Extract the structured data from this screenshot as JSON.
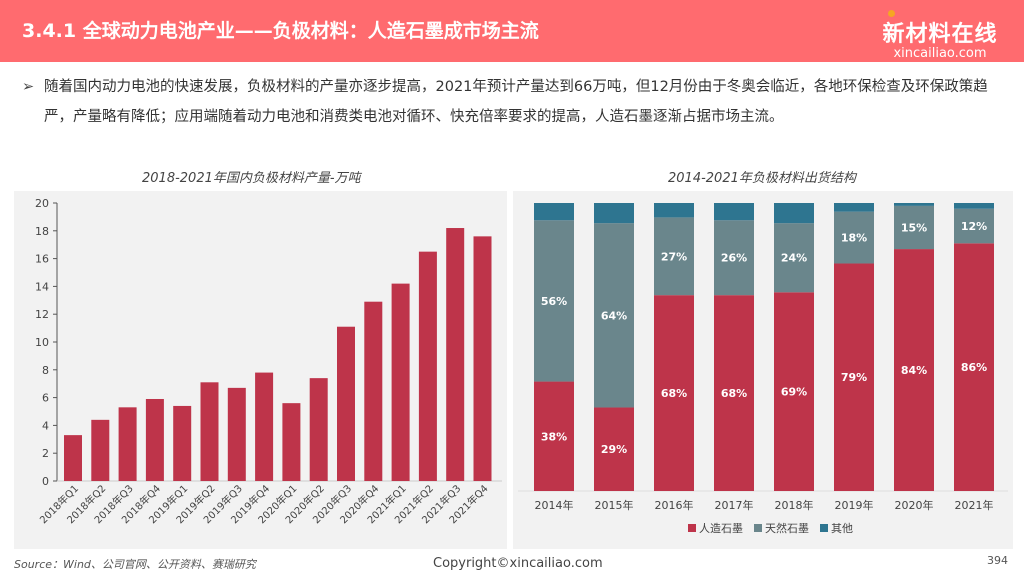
{
  "header": {
    "title": "3.4.1 全球动力电池产业——负极材料：人造石墨成市场主流",
    "logo_cn": "新材料在线",
    "logo_en": "xincailiao.com"
  },
  "bullet": {
    "text": "随着国内动力电池的快速发展，负极材料的产量亦逐步提高，2021年预计产量达到66万吨，但12月份由于冬奥会临近，各地环保检查及环保政策趋严，产量略有降低；应用端随着动力电池和消费类电池对循环、快充倍率要求的提高，人造石墨逐渐占据市场主流。",
    "icon": "arrow-bullet-icon"
  },
  "footer": {
    "source": "Source：Wind、公司官网、公开资料、赛瑞研究",
    "copyright": "Copyright©xincailiao.com",
    "page": "394"
  },
  "colors": {
    "header": "#ff6b6f",
    "artificial": "#be344a",
    "natural": "#6a868c",
    "other": "#2e7590"
  },
  "chart_data": [
    {
      "type": "bar",
      "title": "2018-2021年国内负极材料产量-万吨",
      "ylim": [
        0,
        20
      ],
      "yticks": [
        0,
        2,
        4,
        6,
        8,
        10,
        12,
        14,
        16,
        18,
        20
      ],
      "categories": [
        "2018年Q1",
        "2018年Q2",
        "2018年Q3",
        "2018年Q4",
        "2019年Q1",
        "2019年Q2",
        "2019年Q3",
        "2019年Q4",
        "2020年Q1",
        "2020年Q2",
        "2020年Q3",
        "2020年Q4",
        "2021年Q1",
        "2021年Q2",
        "2021年Q3",
        "2021年Q4"
      ],
      "values": [
        3.3,
        4.4,
        5.3,
        5.9,
        5.4,
        7.1,
        6.7,
        7.8,
        5.6,
        7.4,
        11.1,
        12.9,
        14.2,
        16.5,
        18.2,
        17.6
      ]
    },
    {
      "type": "bar",
      "stacked": true,
      "title": "2014-2021年负极材料出货结构",
      "legend": "bottom",
      "categories": [
        "2014年",
        "2015年",
        "2016年",
        "2017年",
        "2018年",
        "2019年",
        "2020年",
        "2021年"
      ],
      "series": [
        {
          "name": "人造石墨",
          "values": [
            38,
            29,
            68,
            68,
            69,
            79,
            84,
            86
          ],
          "labels": [
            "38%",
            "29%",
            "68%",
            "68%",
            "69%",
            "79%",
            "84%",
            "86%"
          ]
        },
        {
          "name": "天然石墨",
          "values": [
            56,
            64,
            27,
            26,
            24,
            18,
            15,
            12
          ],
          "labels": [
            "56%",
            "64%",
            "27%",
            "26%",
            "24%",
            "18%",
            "15%",
            "12%"
          ]
        },
        {
          "name": "其他",
          "values": [
            6,
            7,
            5,
            6,
            7,
            3,
            1,
            2
          ]
        }
      ]
    }
  ]
}
